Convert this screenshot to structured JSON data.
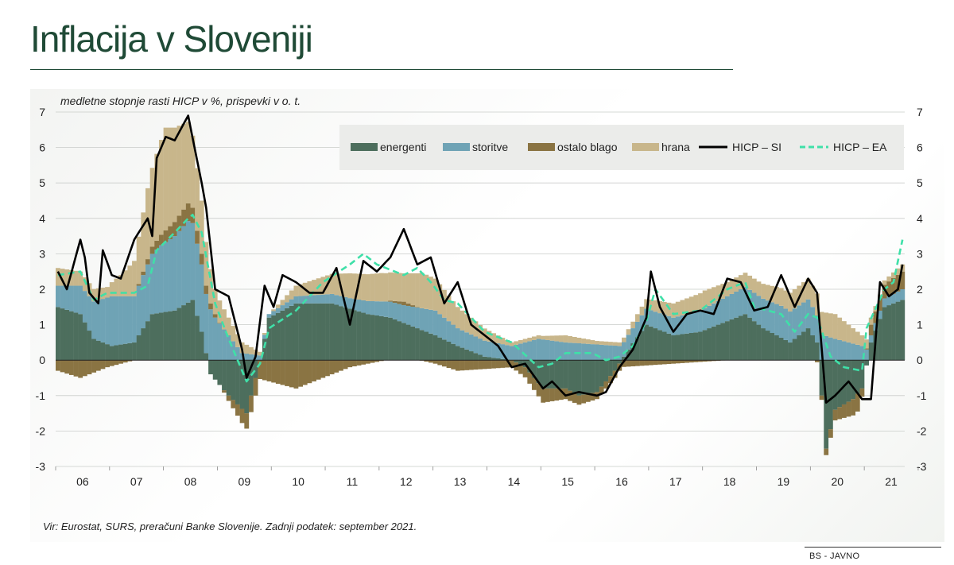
{
  "title": "Inflacija v Sloveniji",
  "subtitle": "medletne stopnje rasti HICP v %, prispevki v o. t.",
  "source": "Vir: Eurostat, SURS, preračuni Banke Slovenije. Zadnji podatek: september 2021.",
  "footer": "BS - JAVNO",
  "colors": {
    "energenti": "#4d6e5d",
    "storitve": "#6fa3b5",
    "ostalo_blago": "#8a7443",
    "hrana": "#c8b68b",
    "hicp_si": "#000000",
    "hicp_ea": "#3fe0a8"
  },
  "chart_data": {
    "type": "bar",
    "stacked": true,
    "y_unit": "%",
    "ylim": [
      -3,
      7
    ],
    "yticks": [
      -3,
      -2,
      -1,
      0,
      1,
      2,
      3,
      4,
      5,
      6,
      7
    ],
    "x_start": "2006-01",
    "x_end": "2021-09",
    "x_tick_labels": [
      "06",
      "07",
      "08",
      "09",
      "10",
      "11",
      "12",
      "13",
      "14",
      "15",
      "16",
      "17",
      "18",
      "19",
      "20",
      "21"
    ],
    "legend": [
      "energenti",
      "storitve",
      "ostalo blago",
      "hrana",
      "HICP – SI",
      "HICP – EA"
    ],
    "legend_position": "top-right",
    "grid": "horizontal",
    "bar_series_keyframes": {
      "energenti": [
        [
          "2006-01",
          1.5
        ],
        [
          "2006-06",
          1.3
        ],
        [
          "2006-09",
          0.6
        ],
        [
          "2007-01",
          0.4
        ],
        [
          "2007-06",
          0.5
        ],
        [
          "2007-10",
          1.3
        ],
        [
          "2008-03",
          1.4
        ],
        [
          "2008-07",
          1.7
        ],
        [
          "2008-09",
          0.8
        ],
        [
          "2008-11",
          -0.4
        ],
        [
          "2009-03",
          -1.0
        ],
        [
          "2009-07",
          -1.5
        ],
        [
          "2009-10",
          0.0
        ],
        [
          "2009-12",
          1.2
        ],
        [
          "2010-06",
          1.6
        ],
        [
          "2011-02",
          1.6
        ],
        [
          "2011-10",
          1.3
        ],
        [
          "2012-03",
          1.2
        ],
        [
          "2012-09",
          0.9
        ],
        [
          "2013-01",
          0.7
        ],
        [
          "2013-06",
          0.4
        ],
        [
          "2013-12",
          0.1
        ],
        [
          "2014-06",
          0.0
        ],
        [
          "2014-09",
          -0.2
        ],
        [
          "2015-01",
          -0.8
        ],
        [
          "2015-06",
          -0.8
        ],
        [
          "2015-09",
          -1.0
        ],
        [
          "2016-01",
          -0.9
        ],
        [
          "2016-05",
          -0.3
        ],
        [
          "2016-08",
          0.3
        ],
        [
          "2016-12",
          1.0
        ],
        [
          "2017-06",
          0.7
        ],
        [
          "2017-12",
          0.8
        ],
        [
          "2018-06",
          1.1
        ],
        [
          "2018-10",
          1.3
        ],
        [
          "2019-02",
          0.9
        ],
        [
          "2019-08",
          0.5
        ],
        [
          "2019-12",
          0.9
        ],
        [
          "2020-02",
          0.5
        ],
        [
          "2020-04",
          -2.5
        ],
        [
          "2020-06",
          -1.4
        ],
        [
          "2020-10",
          -1.1
        ],
        [
          "2020-12",
          -0.8
        ],
        [
          "2021-02",
          0.5
        ],
        [
          "2021-05",
          1.5
        ],
        [
          "2021-09",
          1.7
        ]
      ],
      "storitve": [
        [
          "2006-01",
          0.6
        ],
        [
          "2006-06",
          0.8
        ],
        [
          "2007-01",
          1.4
        ],
        [
          "2007-06",
          1.3
        ],
        [
          "2007-12",
          1.9
        ],
        [
          "2008-06",
          2.3
        ],
        [
          "2008-09",
          1.9
        ],
        [
          "2008-12",
          1.2
        ],
        [
          "2009-06",
          0.2
        ],
        [
          "2009-12",
          0.1
        ],
        [
          "2010-06",
          0.2
        ],
        [
          "2011-06",
          0.3
        ],
        [
          "2012-06",
          0.5
        ],
        [
          "2013-01",
          0.7
        ],
        [
          "2013-06",
          0.5
        ],
        [
          "2014-06",
          0.4
        ],
        [
          "2014-12",
          0.6
        ],
        [
          "2015-06",
          0.5
        ],
        [
          "2016-06",
          0.4
        ],
        [
          "2017-06",
          0.5
        ],
        [
          "2018-06",
          0.7
        ],
        [
          "2019-06",
          0.9
        ],
        [
          "2020-01",
          0.8
        ],
        [
          "2020-06",
          0.6
        ],
        [
          "2020-12",
          0.4
        ],
        [
          "2021-02",
          0.2
        ],
        [
          "2021-09",
          0.3
        ]
      ],
      "ostalo_blago": [
        [
          "2006-01",
          -0.3
        ],
        [
          "2006-06",
          -0.5
        ],
        [
          "2006-12",
          -0.2
        ],
        [
          "2007-06",
          0.0
        ],
        [
          "2007-12",
          0.3
        ],
        [
          "2008-06",
          0.5
        ],
        [
          "2008-12",
          0.1
        ],
        [
          "2009-06",
          -0.4
        ],
        [
          "2009-12",
          -0.6
        ],
        [
          "2010-06",
          -0.8
        ],
        [
          "2010-12",
          -0.5
        ],
        [
          "2011-06",
          -0.2
        ],
        [
          "2012-06",
          0.1
        ],
        [
          "2013-01",
          -0.1
        ],
        [
          "2013-06",
          -0.3
        ],
        [
          "2014-06",
          -0.2
        ],
        [
          "2015-01",
          -0.4
        ],
        [
          "2015-06",
          -0.3
        ],
        [
          "2016-01",
          -0.2
        ],
        [
          "2016-06",
          -0.2
        ],
        [
          "2017-06",
          -0.1
        ],
        [
          "2018-06",
          0.0
        ],
        [
          "2019-06",
          0.0
        ],
        [
          "2020-01",
          0.0
        ],
        [
          "2020-06",
          -0.3
        ],
        [
          "2020-11",
          -0.5
        ],
        [
          "2021-02",
          0.3
        ],
        [
          "2021-09",
          0.5
        ]
      ],
      "hrana": [
        [
          "2006-01",
          0.5
        ],
        [
          "2006-06",
          0.4
        ],
        [
          "2006-12",
          0.3
        ],
        [
          "2007-03",
          0.6
        ],
        [
          "2007-06",
          1.0
        ],
        [
          "2007-09",
          2.0
        ],
        [
          "2008-01",
          2.9
        ],
        [
          "2008-06",
          2.3
        ],
        [
          "2008-09",
          1.5
        ],
        [
          "2008-12",
          0.7
        ],
        [
          "2009-06",
          0.3
        ],
        [
          "2009-12",
          0.0
        ],
        [
          "2010-06",
          0.3
        ],
        [
          "2010-12",
          0.5
        ],
        [
          "2011-06",
          0.7
        ],
        [
          "2012-01",
          0.8
        ],
        [
          "2012-06",
          0.8
        ],
        [
          "2012-10",
          1.0
        ],
        [
          "2013-01",
          0.9
        ],
        [
          "2013-06",
          0.6
        ],
        [
          "2014-01",
          0.3
        ],
        [
          "2014-06",
          0.1
        ],
        [
          "2015-01",
          0.1
        ],
        [
          "2015-06",
          0.2
        ],
        [
          "2016-01",
          0.1
        ],
        [
          "2016-06",
          0.1
        ],
        [
          "2017-01",
          0.3
        ],
        [
          "2017-06",
          0.4
        ],
        [
          "2018-01",
          0.5
        ],
        [
          "2018-06",
          0.4
        ],
        [
          "2019-01",
          0.4
        ],
        [
          "2019-06",
          0.5
        ],
        [
          "2020-01",
          0.6
        ],
        [
          "2020-06",
          0.7
        ],
        [
          "2020-12",
          0.3
        ],
        [
          "2021-04",
          0.1
        ],
        [
          "2021-09",
          0.2
        ]
      ]
    },
    "line_series_keyframes": {
      "HICP – SI": [
        [
          "2006-01",
          2.5
        ],
        [
          "2006-03",
          2.0
        ],
        [
          "2006-06",
          3.4
        ],
        [
          "2006-07",
          2.9
        ],
        [
          "2006-08",
          1.9
        ],
        [
          "2006-10",
          1.6
        ],
        [
          "2006-11",
          3.1
        ],
        [
          "2007-01",
          2.4
        ],
        [
          "2007-03",
          2.3
        ],
        [
          "2007-06",
          3.4
        ],
        [
          "2007-09",
          4.0
        ],
        [
          "2007-10",
          3.5
        ],
        [
          "2007-11",
          5.7
        ],
        [
          "2008-01",
          6.3
        ],
        [
          "2008-03",
          6.2
        ],
        [
          "2008-06",
          6.9
        ],
        [
          "2008-09",
          5.0
        ],
        [
          "2008-10",
          4.3
        ],
        [
          "2008-12",
          2.0
        ],
        [
          "2009-03",
          1.8
        ],
        [
          "2009-06",
          0.3
        ],
        [
          "2009-07",
          -0.5
        ],
        [
          "2009-09",
          0.1
        ],
        [
          "2009-11",
          2.1
        ],
        [
          "2010-01",
          1.5
        ],
        [
          "2010-03",
          2.4
        ],
        [
          "2010-06",
          2.2
        ],
        [
          "2010-09",
          1.9
        ],
        [
          "2010-12",
          1.9
        ],
        [
          "2011-03",
          2.6
        ],
        [
          "2011-06",
          1.0
        ],
        [
          "2011-09",
          2.8
        ],
        [
          "2011-12",
          2.5
        ],
        [
          "2012-03",
          2.9
        ],
        [
          "2012-06",
          3.7
        ],
        [
          "2012-09",
          2.7
        ],
        [
          "2012-12",
          2.9
        ],
        [
          "2013-03",
          1.6
        ],
        [
          "2013-06",
          2.2
        ],
        [
          "2013-09",
          1.0
        ],
        [
          "2013-12",
          0.7
        ],
        [
          "2014-03",
          0.4
        ],
        [
          "2014-06",
          -0.2
        ],
        [
          "2014-09",
          -0.1
        ],
        [
          "2015-01",
          -0.8
        ],
        [
          "2015-03",
          -0.6
        ],
        [
          "2015-06",
          -1.0
        ],
        [
          "2015-09",
          -0.9
        ],
        [
          "2016-01",
          -1.0
        ],
        [
          "2016-03",
          -0.9
        ],
        [
          "2016-06",
          -0.2
        ],
        [
          "2016-09",
          0.3
        ],
        [
          "2016-12",
          1.2
        ],
        [
          "2017-01",
          2.5
        ],
        [
          "2017-03",
          1.5
        ],
        [
          "2017-06",
          0.8
        ],
        [
          "2017-09",
          1.3
        ],
        [
          "2017-12",
          1.4
        ],
        [
          "2018-03",
          1.3
        ],
        [
          "2018-06",
          2.3
        ],
        [
          "2018-09",
          2.2
        ],
        [
          "2018-12",
          1.4
        ],
        [
          "2019-03",
          1.5
        ],
        [
          "2019-06",
          2.4
        ],
        [
          "2019-09",
          1.5
        ],
        [
          "2019-12",
          2.3
        ],
        [
          "2020-02",
          1.9
        ],
        [
          "2020-04",
          -1.2
        ],
        [
          "2020-06",
          -1.0
        ],
        [
          "2020-09",
          -0.6
        ],
        [
          "2020-12",
          -1.1
        ],
        [
          "2021-02",
          -1.1
        ],
        [
          "2021-04",
          2.2
        ],
        [
          "2021-06",
          1.8
        ],
        [
          "2021-08",
          2.0
        ],
        [
          "2021-09",
          2.7
        ]
      ],
      "HICP – EA": [
        [
          "2006-01",
          2.4
        ],
        [
          "2006-06",
          2.5
        ],
        [
          "2006-09",
          1.7
        ],
        [
          "2006-12",
          1.9
        ],
        [
          "2007-06",
          1.9
        ],
        [
          "2007-09",
          2.1
        ],
        [
          "2007-11",
          3.1
        ],
        [
          "2008-03",
          3.6
        ],
        [
          "2008-06",
          4.0
        ],
        [
          "2008-07",
          4.1
        ],
        [
          "2008-09",
          3.6
        ],
        [
          "2008-12",
          1.6
        ],
        [
          "2009-03",
          0.6
        ],
        [
          "2009-07",
          -0.6
        ],
        [
          "2009-10",
          -0.1
        ],
        [
          "2009-12",
          0.9
        ],
        [
          "2010-06",
          1.4
        ],
        [
          "2010-12",
          2.2
        ],
        [
          "2011-06",
          2.7
        ],
        [
          "2011-09",
          3.0
        ],
        [
          "2011-12",
          2.7
        ],
        [
          "2012-06",
          2.4
        ],
        [
          "2012-09",
          2.6
        ],
        [
          "2012-12",
          2.2
        ],
        [
          "2013-03",
          1.7
        ],
        [
          "2013-06",
          1.6
        ],
        [
          "2013-12",
          0.8
        ],
        [
          "2014-06",
          0.5
        ],
        [
          "2014-12",
          -0.2
        ],
        [
          "2015-03",
          -0.1
        ],
        [
          "2015-06",
          0.2
        ],
        [
          "2015-12",
          0.2
        ],
        [
          "2016-03",
          0.0
        ],
        [
          "2016-06",
          0.1
        ],
        [
          "2016-09",
          0.4
        ],
        [
          "2016-12",
          1.1
        ],
        [
          "2017-02",
          2.0
        ],
        [
          "2017-06",
          1.3
        ],
        [
          "2017-12",
          1.4
        ],
        [
          "2018-06",
          2.0
        ],
        [
          "2018-10",
          2.2
        ],
        [
          "2018-12",
          1.5
        ],
        [
          "2019-06",
          1.3
        ],
        [
          "2019-09",
          0.8
        ],
        [
          "2019-12",
          1.3
        ],
        [
          "2020-02",
          1.2
        ],
        [
          "2020-05",
          0.1
        ],
        [
          "2020-08",
          -0.2
        ],
        [
          "2020-12",
          -0.3
        ],
        [
          "2021-01",
          0.9
        ],
        [
          "2021-05",
          2.0
        ],
        [
          "2021-07",
          2.2
        ],
        [
          "2021-09",
          3.4
        ]
      ]
    }
  }
}
